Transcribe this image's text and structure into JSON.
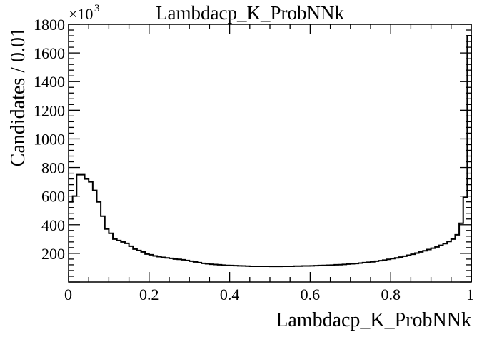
{
  "chart_data": {
    "type": "histogram",
    "title": "Lambdacp_K_ProbNNk",
    "xlabel": "Lambdacp_K_ProbNNk",
    "ylabel": "Candidates / 0.01",
    "xlim": [
      0,
      1
    ],
    "ylim": [
      0,
      1800000
    ],
    "y_multiplier_base": "×10",
    "y_multiplier_exp": "3",
    "x_tick_labels": [
      "0",
      "0.2",
      "0.4",
      "0.6",
      "0.8",
      "1"
    ],
    "y_tick_labels": [
      "200",
      "400",
      "600",
      "800",
      "1000",
      "1200",
      "1400",
      "1600",
      "1800"
    ],
    "bin_width": 0.01,
    "grid": false,
    "values": [
      560000,
      600000,
      750000,
      750000,
      720000,
      700000,
      640000,
      560000,
      460000,
      370000,
      340000,
      300000,
      290000,
      280000,
      270000,
      250000,
      230000,
      220000,
      210000,
      195000,
      190000,
      182000,
      177000,
      172000,
      168000,
      165000,
      160000,
      158000,
      155000,
      150000,
      145000,
      140000,
      135000,
      130000,
      127000,
      124000,
      122000,
      120000,
      118000,
      116000,
      115000,
      114000,
      113000,
      112000,
      111000,
      110000,
      110000,
      110000,
      110000,
      110000,
      109000,
      109000,
      109000,
      110000,
      110000,
      110000,
      111000,
      111000,
      112000,
      112000,
      113000,
      114000,
      115000,
      116000,
      117000,
      118000,
      120000,
      121000,
      123000,
      125000,
      127000,
      129000,
      132000,
      135000,
      138000,
      141000,
      145000,
      149000,
      153000,
      158000,
      163000,
      168000,
      174000,
      180000,
      187000,
      194000,
      202000,
      210000,
      218000,
      227000,
      236000,
      245000,
      256000,
      268000,
      283000,
      300000,
      330000,
      410000,
      590000,
      1720000
    ]
  }
}
